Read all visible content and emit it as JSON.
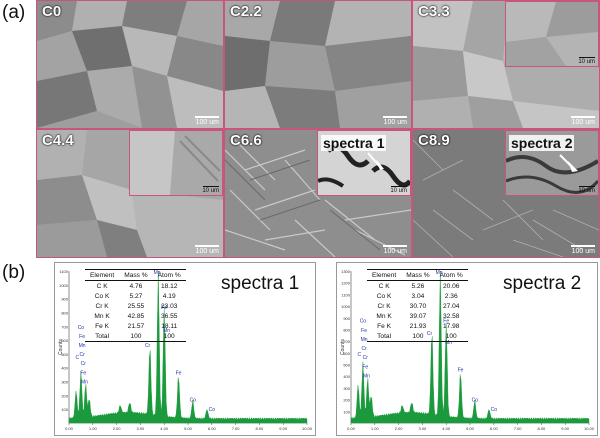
{
  "panel_a": {
    "letter": "(a)",
    "images": [
      {
        "label": "C0",
        "scale": "100 um"
      },
      {
        "label": "C2.2",
        "scale": "100 um"
      },
      {
        "label": "C3.3",
        "scale": "100 um",
        "inset_scale": "10 um"
      },
      {
        "label": "C4.4",
        "scale": "100 um",
        "inset_scale": "10 um"
      },
      {
        "label": "C6.6",
        "scale": "100 um",
        "inset_scale": "10 um",
        "inset_text": "spectra 1"
      },
      {
        "label": "C8.9",
        "scale": "100 um",
        "inset_scale": "10 um",
        "inset_text": "spectra 2"
      }
    ]
  },
  "panel_b": {
    "letter": "(b)",
    "spectra": [
      {
        "title": "spectra 1",
        "y_axis_label": "Counts",
        "y_ticks": [
          "1100",
          "1000",
          "900",
          "800",
          "700",
          "600",
          "500",
          "400",
          "300",
          "200",
          "100"
        ],
        "x_ticks": [
          "0.00",
          "1.00",
          "2.00",
          "3.00",
          "4.00",
          "5.00",
          "6.00",
          "7.00",
          "8.00",
          "9.00",
          "10.00"
        ],
        "table": {
          "headers": [
            "Element",
            "Mass %",
            "Atom %"
          ],
          "rows": [
            [
              "C  K",
              "4.76",
              "18.12"
            ],
            [
              "Co K",
              "5.27",
              "4.19"
            ],
            [
              "Cr K",
              "25.55",
              "23.03"
            ],
            [
              "Mn K",
              "42.85",
              "36.55"
            ],
            [
              "Fe K",
              "21.57",
              "18.11"
            ],
            [
              "Total",
              "100",
              "100"
            ]
          ]
        },
        "peak_labels": [
          "C",
          "Co",
          "Fe",
          "Mn",
          "Cr",
          "Cr",
          "Fe",
          "Mn",
          "Cr",
          "Mn",
          "Fe",
          "Mn",
          "Fe",
          "Co",
          "Co"
        ]
      },
      {
        "title": "spectra 2",
        "y_axis_label": "Counts",
        "y_ticks": [
          "1300",
          "1200",
          "1100",
          "1000",
          "900",
          "800",
          "700",
          "600",
          "500",
          "400",
          "300",
          "200",
          "100"
        ],
        "x_ticks": [
          "0.00",
          "1.00",
          "2.00",
          "3.00",
          "4.00",
          "5.00",
          "6.00",
          "7.00",
          "8.00",
          "9.00",
          "10.00"
        ],
        "table": {
          "headers": [
            "Element",
            "Mass %",
            "Atom %"
          ],
          "rows": [
            [
              "C  K",
              "5.26",
              "20.06"
            ],
            [
              "Co K",
              "3.04",
              "2.36"
            ],
            [
              "Cr K",
              "30.70",
              "27.04"
            ],
            [
              "Mn K",
              "39.07",
              "32.58"
            ],
            [
              "Fe K",
              "21.93",
              "17.98"
            ],
            [
              "Total",
              "100",
              "100"
            ]
          ]
        },
        "peak_labels": [
          "C",
          "Co",
          "Fe",
          "Mn",
          "Cr",
          "Cr",
          "Fe",
          "Mn",
          "Cr",
          "Mn",
          "Fe",
          "Mn",
          "Fe",
          "Co",
          "Co"
        ]
      }
    ]
  },
  "colors": {
    "frame": "#c9567a",
    "spectrum": "#1a9a3c",
    "peak_label": "#1e2fa8"
  }
}
